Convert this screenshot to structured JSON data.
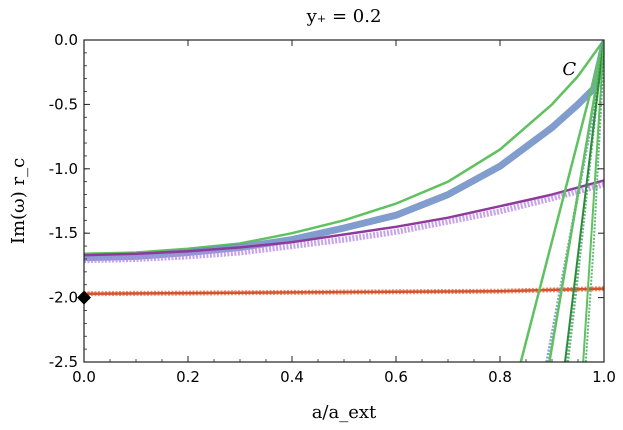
{
  "chart_data": {
    "type": "line",
    "title": "y₊ = 0.2",
    "xlabel": "a/a_ext",
    "ylabel": "Im(ω) r_c",
    "xlim": [
      0.0,
      1.0
    ],
    "ylim": [
      -2.5,
      0.0
    ],
    "x_ticks": [
      "0.0",
      "0.2",
      "0.4",
      "0.6",
      "0.8",
      "1.0"
    ],
    "y_ticks": [
      "0.0",
      "-0.5",
      "-1.0",
      "-1.5",
      "-2.0",
      "-2.5"
    ],
    "grid": false,
    "legend": "none",
    "annotations": [
      {
        "text": "C",
        "x": 0.92,
        "y": -0.27
      }
    ],
    "marker_point": {
      "x": 0.0,
      "y": -2.0,
      "shape": "diamond",
      "color": "#000000"
    },
    "series": [
      {
        "style": "line",
        "color": "#5fc15f",
        "width": 2.5,
        "x": [
          0,
          0.1,
          0.2,
          0.3,
          0.4,
          0.5,
          0.6,
          0.7,
          0.8,
          0.9,
          0.95,
          1.0
        ],
        "y": [
          -1.66,
          -1.65,
          -1.62,
          -1.58,
          -1.5,
          -1.4,
          -1.27,
          -1.1,
          -0.85,
          -0.5,
          -0.28,
          0.0
        ]
      },
      {
        "style": "thick-markers",
        "color": "#6b8cc4",
        "width": 7,
        "x": [
          0,
          0.1,
          0.2,
          0.3,
          0.4,
          0.5,
          0.6,
          0.7,
          0.8,
          0.9,
          0.95,
          0.98,
          1.0
        ],
        "y": [
          -1.69,
          -1.68,
          -1.65,
          -1.61,
          -1.55,
          -1.46,
          -1.36,
          -1.2,
          -0.98,
          -0.68,
          -0.5,
          -0.38,
          -0.03
        ]
      },
      {
        "style": "line",
        "color": "#8e3a9a",
        "width": 2.5,
        "x": [
          0,
          0.1,
          0.2,
          0.3,
          0.4,
          0.5,
          0.6,
          0.7,
          0.8,
          0.9,
          1.0
        ],
        "y": [
          -1.67,
          -1.66,
          -1.64,
          -1.61,
          -1.57,
          -1.51,
          -1.45,
          -1.38,
          -1.29,
          -1.2,
          -1.09
        ]
      },
      {
        "style": "open-markers",
        "color": "#b98be6",
        "width": 6,
        "x": [
          0,
          0.1,
          0.2,
          0.3,
          0.4,
          0.5,
          0.6,
          0.7,
          0.8,
          0.9,
          1.0
        ],
        "y": [
          -1.71,
          -1.7,
          -1.68,
          -1.65,
          -1.6,
          -1.55,
          -1.49,
          -1.41,
          -1.33,
          -1.23,
          -1.12
        ]
      },
      {
        "style": "open-markers",
        "color": "#e8734a",
        "width": 5,
        "x": [
          0,
          0.2,
          0.4,
          0.6,
          0.8,
          0.9,
          1.0
        ],
        "y": [
          -1.97,
          -1.965,
          -1.96,
          -1.955,
          -1.95,
          -1.94,
          -1.93
        ]
      },
      {
        "style": "line",
        "color": "#d4532f",
        "width": 2.5,
        "x": [
          0,
          0.2,
          0.4,
          0.6,
          0.8,
          0.9,
          1.0
        ],
        "y": [
          -1.97,
          -1.965,
          -1.96,
          -1.955,
          -1.95,
          -1.94,
          -1.93
        ]
      },
      {
        "style": "line",
        "color": "#5fc15f",
        "width": 2.5,
        "x": [
          0.84,
          1.0
        ],
        "y": [
          -2.5,
          0.0
        ]
      },
      {
        "style": "open-markers",
        "color": "#6b8cc4",
        "width": 3,
        "x": [
          0.89,
          0.92,
          0.95,
          0.98,
          1.0
        ],
        "y": [
          -2.5,
          -1.85,
          -1.2,
          -0.55,
          -0.1
        ]
      },
      {
        "style": "line",
        "color": "#5fc15f",
        "width": 2.5,
        "x": [
          0.895,
          1.0
        ],
        "y": [
          -2.5,
          0.0
        ]
      },
      {
        "style": "open-markers",
        "color": "#3fa35a",
        "width": 3,
        "x": [
          0.93,
          0.95,
          0.97,
          0.99,
          1.0
        ],
        "y": [
          -2.5,
          -1.8,
          -1.05,
          -0.3,
          0.0
        ]
      },
      {
        "style": "line",
        "color": "#2e8b3e",
        "width": 2,
        "x": [
          0.925,
          1.0
        ],
        "y": [
          -2.5,
          0.0
        ]
      },
      {
        "style": "line",
        "color": "#5fc15f",
        "width": 2,
        "x": [
          0.96,
          1.0
        ],
        "y": [
          -2.5,
          0.0
        ]
      },
      {
        "style": "open-markers",
        "color": "#3fa35a",
        "width": 2,
        "x": [
          0.965,
          0.98,
          1.0
        ],
        "y": [
          -2.5,
          -1.6,
          -0.1
        ]
      }
    ]
  }
}
